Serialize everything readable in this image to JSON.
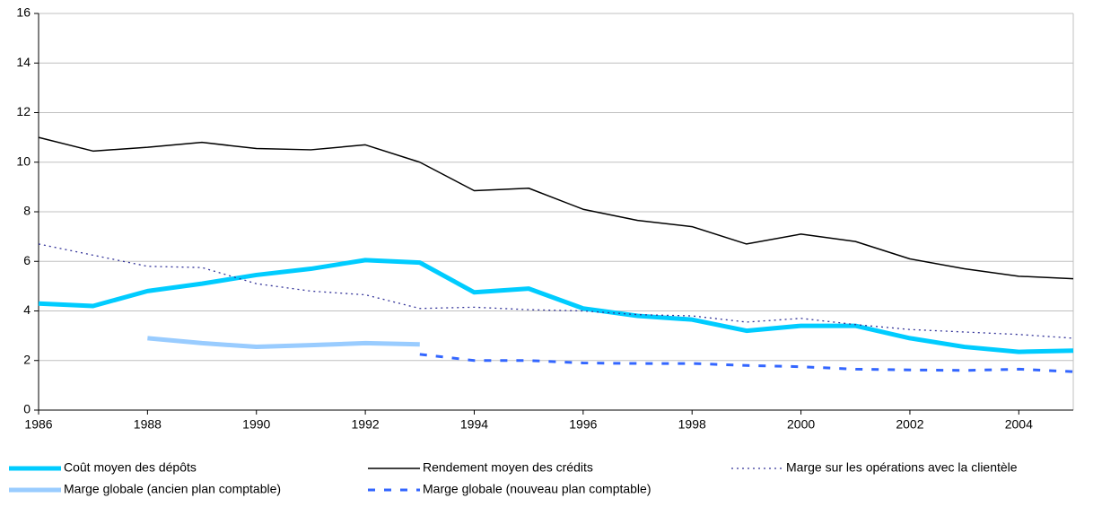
{
  "chart_data": {
    "type": "line",
    "x": [
      1986,
      1987,
      1988,
      1989,
      1990,
      1991,
      1992,
      1993,
      1994,
      1995,
      1996,
      1997,
      1998,
      1999,
      2000,
      2001,
      2002,
      2003,
      2004,
      2005
    ],
    "xlim": [
      1986,
      2005
    ],
    "xticks": [
      1986,
      1988,
      1990,
      1992,
      1994,
      1996,
      1998,
      2000,
      2002,
      2004
    ],
    "ylim": [
      0,
      16
    ],
    "yticks": [
      0,
      2,
      4,
      6,
      8,
      10,
      12,
      14,
      16
    ],
    "grid": true,
    "legend": "bottom",
    "series": [
      {
        "name": "Coût moyen des dépôts",
        "color": "#00ccff",
        "style": "thick",
        "values": [
          4.3,
          4.2,
          4.8,
          5.1,
          5.45,
          5.7,
          6.05,
          5.95,
          4.75,
          4.9,
          4.1,
          3.8,
          3.65,
          3.2,
          3.4,
          3.4,
          2.9,
          2.55,
          2.35,
          2.4
        ]
      },
      {
        "name": "Rendement moyen des crédits",
        "color": "#000000",
        "style": "solid",
        "values": [
          11.0,
          10.45,
          10.6,
          10.8,
          10.55,
          10.5,
          10.7,
          10.0,
          8.85,
          8.95,
          8.1,
          7.65,
          7.4,
          6.7,
          7.1,
          6.8,
          6.1,
          5.7,
          5.4,
          5.3
        ]
      },
      {
        "name": "Marge sur les opérations avec la clientèle",
        "color": "#333399",
        "style": "dotted",
        "values": [
          6.7,
          6.25,
          5.8,
          5.75,
          5.1,
          4.8,
          4.65,
          4.1,
          4.15,
          4.05,
          4.0,
          3.85,
          3.8,
          3.55,
          3.7,
          3.45,
          3.25,
          3.15,
          3.05,
          2.9
        ]
      },
      {
        "name": "Marge globale (ancien plan comptable)",
        "color": "#99ccff",
        "style": "thick",
        "values": [
          null,
          null,
          2.9,
          2.7,
          2.55,
          2.62,
          2.7,
          2.65,
          null,
          null,
          null,
          null,
          null,
          null,
          null,
          null,
          null,
          null,
          null,
          null
        ]
      },
      {
        "name": "Marge globale (nouveau plan comptable)",
        "color": "#3366ff",
        "style": "dashed",
        "values": [
          null,
          null,
          null,
          null,
          null,
          null,
          null,
          2.25,
          2.0,
          2.0,
          1.9,
          1.88,
          1.88,
          1.8,
          1.75,
          1.65,
          1.62,
          1.6,
          1.65,
          1.55
        ]
      }
    ]
  }
}
